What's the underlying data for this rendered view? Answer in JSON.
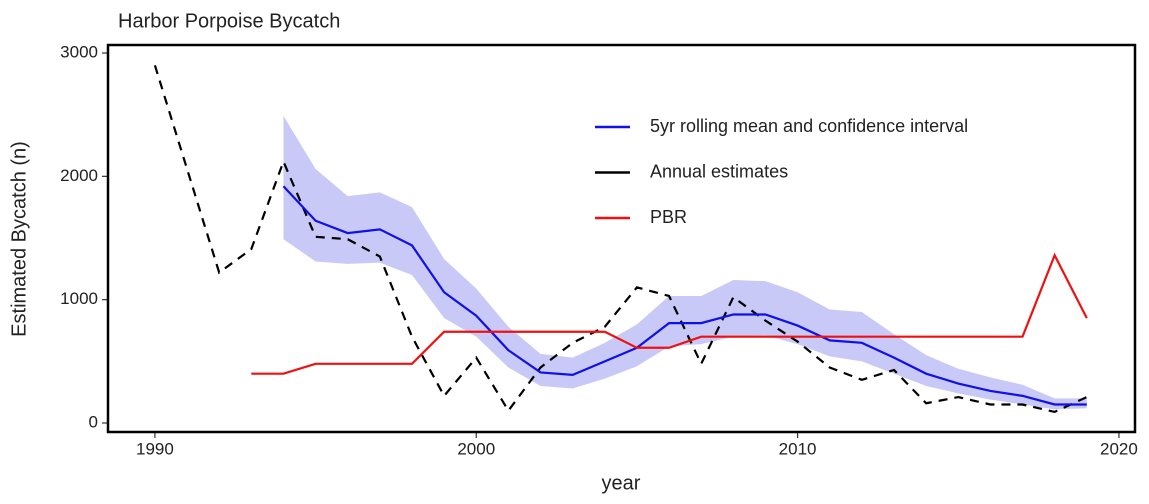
{
  "chart_data": {
    "type": "line",
    "title": "Harbor Porpoise Bycatch",
    "x_label": "year",
    "y_label": "Estimated Bycatch (n)",
    "x": [
      1990,
      1991,
      1992,
      1993,
      1994,
      1995,
      1996,
      1997,
      1998,
      1999,
      2000,
      2001,
      2002,
      2003,
      2004,
      2005,
      2006,
      2007,
      2008,
      2009,
      2010,
      2011,
      2012,
      2013,
      2014,
      2015,
      2016,
      2017,
      2018,
      2019
    ],
    "series": [
      {
        "name": "5yr rolling mean and confidence interval",
        "color": "#1010e8",
        "dash": false,
        "band_color": "#c9c9f7",
        "values": [
          null,
          null,
          null,
          null,
          1920,
          1640,
          1540,
          1570,
          1440,
          1060,
          870,
          590,
          410,
          390,
          500,
          610,
          810,
          810,
          880,
          880,
          790,
          670,
          650,
          530,
          400,
          320,
          260,
          220,
          150,
          150
        ],
        "lower": [
          null,
          null,
          null,
          null,
          1490,
          1310,
          1290,
          1300,
          1200,
          850,
          700,
          450,
          300,
          280,
          360,
          460,
          620,
          640,
          700,
          710,
          640,
          540,
          500,
          400,
          300,
          240,
          190,
          150,
          110,
          120
        ],
        "upper": [
          null,
          null,
          null,
          null,
          2490,
          2060,
          1840,
          1870,
          1750,
          1330,
          1090,
          780,
          560,
          530,
          650,
          800,
          1030,
          1030,
          1160,
          1150,
          1060,
          920,
          900,
          720,
          550,
          440,
          370,
          310,
          200,
          200
        ]
      },
      {
        "name": "Annual estimates",
        "color": "#000000",
        "dash": true,
        "values": [
          2900,
          2060,
          1220,
          1410,
          2120,
          1510,
          1490,
          1350,
          700,
          220,
          530,
          100,
          450,
          650,
          780,
          1100,
          1030,
          480,
          1020,
          830,
          660,
          450,
          350,
          430,
          160,
          210,
          150,
          150,
          90,
          210
        ]
      },
      {
        "name": "PBR",
        "color": "#ee1111",
        "dash": false,
        "values": [
          null,
          null,
          null,
          400,
          400,
          480,
          480,
          480,
          480,
          740,
          740,
          740,
          740,
          740,
          740,
          610,
          610,
          700,
          700,
          700,
          700,
          700,
          700,
          700,
          700,
          700,
          700,
          700,
          1360,
          850
        ]
      }
    ],
    "xlim": [
      1988.54,
      2020.5
    ],
    "xticks": [
      1990,
      2000,
      2010,
      2020
    ],
    "ylim": [
      -73,
      3065
    ],
    "yticks": [
      0,
      1000,
      2000,
      3000
    ]
  }
}
